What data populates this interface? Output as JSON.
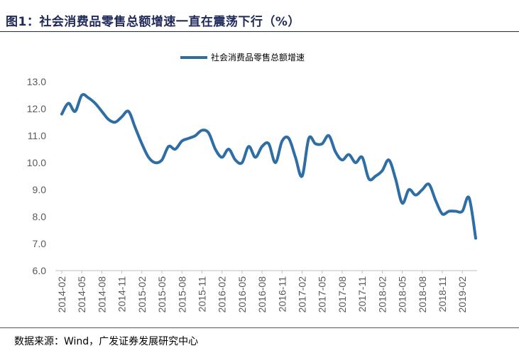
{
  "header": {
    "title": "图1：社会消费品零售总额增速一直在震荡下行（%）"
  },
  "footer": {
    "source": "数据来源：Wind，广发证券发展研究中心"
  },
  "chart_data": {
    "type": "line",
    "title": "图1：社会消费品零售总额增速一直在震荡下行（%）",
    "ylim": [
      6.0,
      13.0
    ],
    "yticks": [
      "6.0",
      "7.0",
      "8.0",
      "9.0",
      "10.0",
      "11.0",
      "12.0",
      "13.0"
    ],
    "xtick_labels": [
      "2014-02",
      "2014-05",
      "2014-08",
      "2014-11",
      "2015-02",
      "2015-05",
      "2015-08",
      "2015-11",
      "2016-02",
      "2016-05",
      "2016-08",
      "2016-11",
      "2017-02",
      "2017-05",
      "2017-08",
      "2017-11",
      "2018-02",
      "2018-05",
      "2018-08",
      "2018-11",
      "2019-02"
    ],
    "legend": "top-center",
    "grid": false,
    "x": [
      "2014-02",
      "2014-03",
      "2014-04",
      "2014-05",
      "2014-06",
      "2014-07",
      "2014-08",
      "2014-09",
      "2014-10",
      "2014-11",
      "2014-12",
      "2015-01",
      "2015-02",
      "2015-03",
      "2015-04",
      "2015-05",
      "2015-06",
      "2015-07",
      "2015-08",
      "2015-09",
      "2015-10",
      "2015-11",
      "2015-12",
      "2016-01",
      "2016-02",
      "2016-03",
      "2016-04",
      "2016-05",
      "2016-06",
      "2016-07",
      "2016-08",
      "2016-09",
      "2016-10",
      "2016-11",
      "2016-12",
      "2017-01",
      "2017-02",
      "2017-03",
      "2017-04",
      "2017-05",
      "2017-06",
      "2017-07",
      "2017-08",
      "2017-09",
      "2017-10",
      "2017-11",
      "2017-12",
      "2018-01",
      "2018-02",
      "2018-03",
      "2018-04",
      "2018-05",
      "2018-06",
      "2018-07",
      "2018-08",
      "2018-09",
      "2018-10",
      "2018-11",
      "2018-12",
      "2019-01",
      "2019-02",
      "2019-03",
      "2019-04"
    ],
    "series": [
      {
        "name": "社会消费品零售总额增速",
        "color": "#2f6ea5",
        "values": [
          11.8,
          12.2,
          11.9,
          12.5,
          12.4,
          12.2,
          11.9,
          11.6,
          11.5,
          11.7,
          11.9,
          11.3,
          10.7,
          10.2,
          10.0,
          10.1,
          10.6,
          10.5,
          10.8,
          10.9,
          11.0,
          11.2,
          11.1,
          10.5,
          10.2,
          10.5,
          10.1,
          10.0,
          10.6,
          10.2,
          10.6,
          10.7,
          10.0,
          10.8,
          10.9,
          10.2,
          9.5,
          10.9,
          10.7,
          10.7,
          11.0,
          10.4,
          10.1,
          10.3,
          10.0,
          10.2,
          9.4,
          9.5,
          9.7,
          10.1,
          9.4,
          8.5,
          9.0,
          8.8,
          9.0,
          9.2,
          8.6,
          8.1,
          8.2,
          8.2,
          8.2,
          8.7,
          7.2
        ]
      }
    ]
  }
}
